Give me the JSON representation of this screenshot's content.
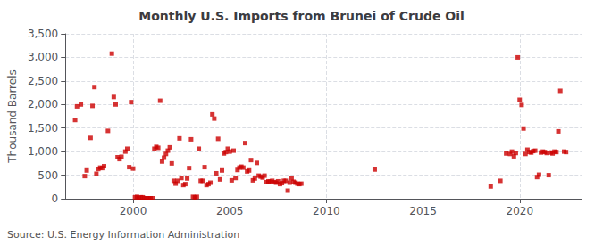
{
  "chart_data": {
    "type": "scatter",
    "title": "Monthly U.S. Imports from Brunei of Crude Oil",
    "ylabel": "Thousand Barrels",
    "annotations": [
      "Source: U.S. Energy Information Administration"
    ],
    "color": "#cc0000",
    "marker": "square",
    "grid": true,
    "xlim": [
      1996.5,
      2023.2
    ],
    "xticks": [
      2000,
      2005,
      2010,
      2015,
      2020
    ],
    "ylim": [
      0,
      3500
    ],
    "yticks": [
      0,
      500,
      {
        "value": 1000,
        "label": "1,000"
      },
      {
        "value": 1500,
        "label": "1,500"
      },
      {
        "value": 2000,
        "label": "2,000"
      },
      {
        "value": 2500,
        "label": "2,500"
      },
      {
        "value": 3000,
        "label": "3,000"
      },
      {
        "value": 3500,
        "label": "3,500"
      }
    ],
    "x": [
      1997.0,
      1997.1,
      1997.3,
      1997.5,
      1997.6,
      1997.8,
      1997.9,
      1998.0,
      1998.1,
      1998.2,
      1998.3,
      1998.4,
      1998.5,
      1998.7,
      1998.9,
      1999.0,
      1999.1,
      1999.2,
      1999.3,
      1999.4,
      1999.6,
      1999.7,
      1999.8,
      1999.9,
      2000.0,
      2000.1,
      2000.2,
      2000.3,
      2000.4,
      2000.5,
      2000.6,
      2000.7,
      2000.8,
      2000.9,
      2001.0,
      2001.1,
      2001.2,
      2001.3,
      2001.4,
      2001.5,
      2001.6,
      2001.7,
      2001.8,
      2001.9,
      2002.0,
      2002.1,
      2002.2,
      2002.3,
      2002.4,
      2002.5,
      2002.6,
      2002.7,
      2002.8,
      2002.9,
      2003.0,
      2003.1,
      2003.2,
      2003.3,
      2003.4,
      2003.5,
      2003.6,
      2003.7,
      2003.8,
      2003.9,
      2004.0,
      2004.1,
      2004.2,
      2004.3,
      2004.4,
      2004.5,
      2004.6,
      2004.7,
      2004.8,
      2004.9,
      2005.0,
      2005.1,
      2005.2,
      2005.3,
      2005.4,
      2005.5,
      2005.6,
      2005.7,
      2005.8,
      2005.9,
      2006.0,
      2006.1,
      2006.2,
      2006.3,
      2006.4,
      2006.5,
      2006.6,
      2006.7,
      2006.8,
      2006.9,
      2007.0,
      2007.1,
      2007.2,
      2007.3,
      2007.4,
      2007.5,
      2007.6,
      2007.7,
      2007.8,
      2007.9,
      2008.0,
      2008.1,
      2008.2,
      2008.3,
      2008.4,
      2008.5,
      2008.6,
      2008.7,
      2012.5,
      2018.5,
      2019.0,
      2019.3,
      2019.5,
      2019.6,
      2019.7,
      2019.8,
      2019.9,
      2020.0,
      2020.1,
      2020.2,
      2020.3,
      2020.4,
      2020.5,
      2020.6,
      2020.7,
      2020.8,
      2020.9,
      2021.0,
      2021.1,
      2021.2,
      2021.3,
      2021.4,
      2021.5,
      2021.6,
      2021.7,
      2021.8,
      2021.9,
      2022.0,
      2022.1,
      2022.3,
      2022.4
    ],
    "values": [
      1670,
      1960,
      2000,
      480,
      600,
      1290,
      1970,
      2370,
      530,
      630,
      660,
      650,
      690,
      1440,
      3080,
      2160,
      2000,
      880,
      840,
      890,
      1000,
      1060,
      670,
      2050,
      640,
      30,
      40,
      20,
      30,
      30,
      10,
      10,
      10,
      10,
      10,
      1060,
      1100,
      1080,
      2080,
      790,
      870,
      950,
      1020,
      1090,
      750,
      380,
      320,
      380,
      1280,
      440,
      290,
      310,
      430,
      650,
      1260,
      40,
      30,
      40,
      1060,
      380,
      380,
      670,
      290,
      310,
      340,
      1790,
      1700,
      540,
      1270,
      410,
      600,
      960,
      990,
      1060,
      1000,
      390,
      1020,
      440,
      610,
      660,
      680,
      660,
      1180,
      580,
      600,
      820,
      390,
      430,
      760,
      490,
      470,
      450,
      490,
      350,
      370,
      360,
      380,
      350,
      340,
      370,
      310,
      330,
      380,
      380,
      170,
      340,
      430,
      360,
      340,
      320,
      310,
      320,
      620,
      260,
      380,
      960,
      950,
      1000,
      900,
      970,
      3000,
      2100,
      1990,
      1490,
      950,
      1040,
      990,
      980,
      1010,
      1020,
      460,
      510,
      980,
      1000,
      990,
      970,
      500,
      980,
      960,
      1000,
      990,
      1430,
      2290,
      1000,
      990
    ]
  }
}
